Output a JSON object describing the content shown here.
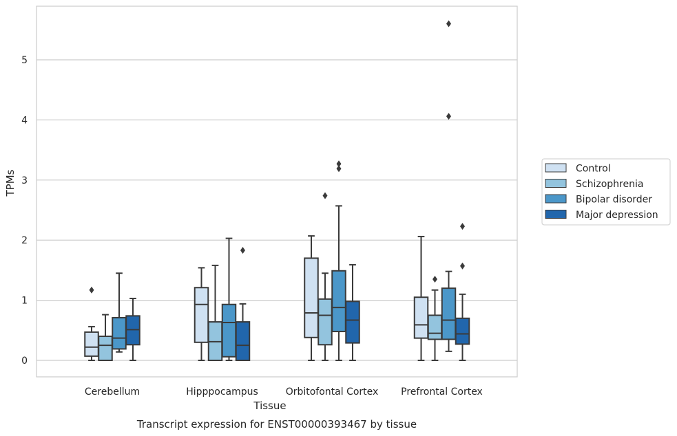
{
  "chart_data": {
    "type": "box",
    "title": "",
    "caption": "Transcript expression for ENST00000393467 by tissue",
    "xlabel": "Tissue",
    "ylabel": "TPMs",
    "ylim": [
      -0.28,
      5.88
    ],
    "yticks": [
      0,
      1,
      2,
      3,
      4,
      5
    ],
    "grid": "horizontal",
    "legend_position": "right",
    "categories": [
      "Cerebellum",
      "Hipppocampus",
      "Orbitofontal Cortex",
      "Prefrontal Cortex"
    ],
    "series": [
      {
        "name": "Control",
        "color": "#cfe1f2",
        "boxes": [
          {
            "whislo": 0.0,
            "q1": 0.07,
            "med": 0.22,
            "q3": 0.47,
            "whishi": 0.56,
            "fliers": [
              1.17
            ]
          },
          {
            "whislo": 0.0,
            "q1": 0.3,
            "med": 0.93,
            "q3": 1.21,
            "whishi": 1.54,
            "fliers": []
          },
          {
            "whislo": 0.0,
            "q1": 0.38,
            "med": 0.79,
            "q3": 1.7,
            "whishi": 2.07,
            "fliers": []
          },
          {
            "whislo": 0.0,
            "q1": 0.37,
            "med": 0.59,
            "q3": 1.05,
            "whishi": 2.06,
            "fliers": []
          }
        ]
      },
      {
        "name": "Schizophrenia",
        "color": "#93c4de",
        "boxes": [
          {
            "whislo": 0.0,
            "q1": 0.0,
            "med": 0.25,
            "q3": 0.4,
            "whishi": 0.76,
            "fliers": []
          },
          {
            "whislo": 0.0,
            "q1": 0.0,
            "med": 0.31,
            "q3": 0.64,
            "whishi": 1.58,
            "fliers": []
          },
          {
            "whislo": 0.0,
            "q1": 0.26,
            "med": 0.75,
            "q3": 1.02,
            "whishi": 1.45,
            "fliers": [
              2.74
            ]
          },
          {
            "whislo": 0.0,
            "q1": 0.35,
            "med": 0.45,
            "q3": 0.75,
            "whishi": 1.17,
            "fliers": [
              1.35
            ]
          }
        ]
      },
      {
        "name": "Bipolar disorder",
        "color": "#4b97c9",
        "boxes": [
          {
            "whislo": 0.14,
            "q1": 0.19,
            "med": 0.37,
            "q3": 0.71,
            "whishi": 1.45,
            "fliers": []
          },
          {
            "whislo": 0.0,
            "q1": 0.06,
            "med": 0.63,
            "q3": 0.93,
            "whishi": 2.03,
            "fliers": []
          },
          {
            "whislo": 0.0,
            "q1": 0.48,
            "med": 0.88,
            "q3": 1.49,
            "whishi": 2.57,
            "fliers": [
              3.19,
              3.27
            ]
          },
          {
            "whislo": 0.15,
            "q1": 0.35,
            "med": 0.67,
            "q3": 1.2,
            "whishi": 1.48,
            "fliers": [
              4.06,
              5.6
            ]
          }
        ]
      },
      {
        "name": "Major depression",
        "color": "#2166ac",
        "boxes": [
          {
            "whislo": 0.0,
            "q1": 0.26,
            "med": 0.51,
            "q3": 0.74,
            "whishi": 1.03,
            "fliers": []
          },
          {
            "whislo": 0.0,
            "q1": 0.0,
            "med": 0.25,
            "q3": 0.64,
            "whishi": 0.94,
            "fliers": [
              1.83
            ]
          },
          {
            "whislo": 0.0,
            "q1": 0.29,
            "med": 0.67,
            "q3": 0.98,
            "whishi": 1.59,
            "fliers": []
          },
          {
            "whislo": 0.0,
            "q1": 0.27,
            "med": 0.44,
            "q3": 0.7,
            "whishi": 1.1,
            "fliers": [
              1.57,
              2.23
            ]
          }
        ]
      }
    ],
    "style": {
      "edge_color": "#3a3a3a",
      "grid_color": "#cccccc",
      "frame_color": "#cccccc"
    }
  }
}
